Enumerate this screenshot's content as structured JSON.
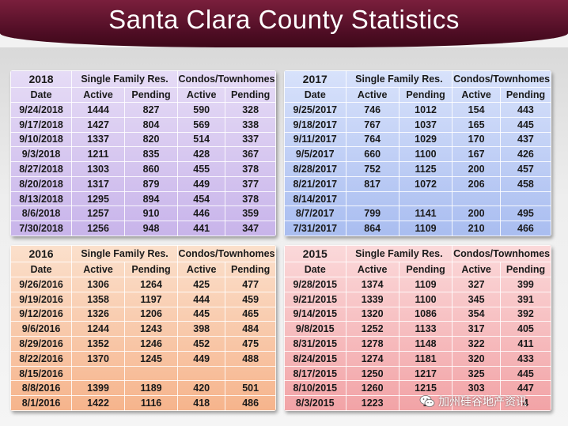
{
  "title": "Santa Clara County Statistics",
  "colors": {
    "title_band": "#5a1230",
    "panel_2018": "#d3c2ef",
    "panel_2017": "#b9cbf4",
    "panel_2016": "#f8c8a6",
    "panel_2015": "#f5b9bb"
  },
  "headers": {
    "single_family": "Single Family Res.",
    "condos": "Condos/Townhomes",
    "date": "Date",
    "active": "Active",
    "pending": "Pending"
  },
  "tables": [
    {
      "year": "2018",
      "rows": [
        [
          "9/24/2018",
          "1444",
          "827",
          "590",
          "328"
        ],
        [
          "9/17/2018",
          "1427",
          "804",
          "569",
          "338"
        ],
        [
          "9/10/2018",
          "1337",
          "820",
          "514",
          "337"
        ],
        [
          "9/3/2018",
          "1211",
          "835",
          "428",
          "367"
        ],
        [
          "8/27/2018",
          "1303",
          "860",
          "455",
          "378"
        ],
        [
          "8/20/2018",
          "1317",
          "879",
          "449",
          "377"
        ],
        [
          "8/13/2018",
          "1295",
          "894",
          "454",
          "378"
        ],
        [
          "8/6/2018",
          "1257",
          "910",
          "446",
          "359"
        ],
        [
          "7/30/2018",
          "1256",
          "948",
          "441",
          "347"
        ]
      ]
    },
    {
      "year": "2017",
      "rows": [
        [
          "9/25/2017",
          "746",
          "1012",
          "154",
          "443"
        ],
        [
          "9/18/2017",
          "767",
          "1037",
          "165",
          "445"
        ],
        [
          "9/11/2017",
          "764",
          "1029",
          "170",
          "437"
        ],
        [
          "9/5/2017",
          "660",
          "1100",
          "167",
          "426"
        ],
        [
          "8/28/2017",
          "752",
          "1125",
          "200",
          "457"
        ],
        [
          "8/21/2017",
          "817",
          "1072",
          "206",
          "458"
        ],
        [
          "8/14/2017",
          "",
          "",
          "",
          ""
        ],
        [
          "8/7/2017",
          "799",
          "1141",
          "200",
          "495"
        ],
        [
          "7/31/2017",
          "864",
          "1109",
          "210",
          "466"
        ]
      ]
    },
    {
      "year": "2016",
      "rows": [
        [
          "9/26/2016",
          "1306",
          "1264",
          "425",
          "477"
        ],
        [
          "9/19/2016",
          "1358",
          "1197",
          "444",
          "459"
        ],
        [
          "9/12/2016",
          "1326",
          "1206",
          "445",
          "465"
        ],
        [
          "9/6/2016",
          "1244",
          "1243",
          "398",
          "484"
        ],
        [
          "8/29/2016",
          "1352",
          "1246",
          "452",
          "475"
        ],
        [
          "8/22/2016",
          "1370",
          "1245",
          "449",
          "488"
        ],
        [
          "8/15/2016",
          "",
          "",
          "",
          ""
        ],
        [
          "8/8/2016",
          "1399",
          "1189",
          "420",
          "501"
        ],
        [
          "8/1/2016",
          "1422",
          "1116",
          "418",
          "486"
        ]
      ]
    },
    {
      "year": "2015",
      "rows": [
        [
          "9/28/2015",
          "1374",
          "1109",
          "327",
          "399"
        ],
        [
          "9/21/2015",
          "1339",
          "1100",
          "345",
          "391"
        ],
        [
          "9/14/2015",
          "1320",
          "1086",
          "354",
          "392"
        ],
        [
          "9/8/2015",
          "1252",
          "1133",
          "317",
          "405"
        ],
        [
          "8/31/2015",
          "1278",
          "1148",
          "322",
          "411"
        ],
        [
          "8/24/2015",
          "1274",
          "1181",
          "320",
          "433"
        ],
        [
          "8/17/2015",
          "1250",
          "1217",
          "325",
          "445"
        ],
        [
          "8/10/2015",
          "1260",
          "1215",
          "303",
          "447"
        ],
        [
          "8/3/2015",
          "1223",
          "1",
          "",
          "4"
        ]
      ]
    }
  ],
  "watermark": {
    "text": "加州硅谷地产资讯",
    "icon": "wechat-icon"
  }
}
